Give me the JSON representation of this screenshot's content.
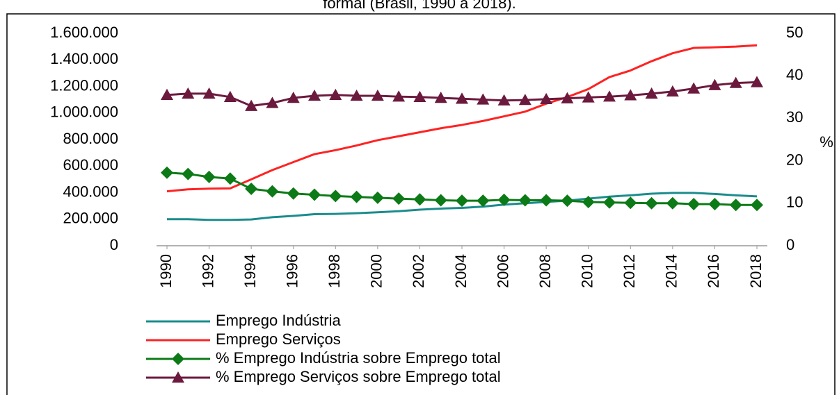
{
  "chart_data": {
    "type": "line",
    "title": "formal (Brasil, 1990 a 2018).",
    "y2label": "%",
    "x": [
      1990,
      1991,
      1992,
      1993,
      1994,
      1995,
      1996,
      1997,
      1998,
      1999,
      2000,
      2001,
      2002,
      2003,
      2004,
      2005,
      2006,
      2007,
      2008,
      2009,
      2010,
      2011,
      2012,
      2013,
      2014,
      2015,
      2016,
      2017,
      2018
    ],
    "xlim": [
      1990,
      2018
    ],
    "xticks": [
      1990,
      1992,
      1994,
      1996,
      1998,
      2000,
      2002,
      2004,
      2006,
      2008,
      2010,
      2012,
      2014,
      2016,
      2018
    ],
    "ylim": [
      0,
      1600000
    ],
    "yticks": [
      0,
      {
        "value": 200000,
        "label": "200.000"
      },
      {
        "value": 400000,
        "label": "400.000"
      },
      {
        "value": 600000,
        "label": "600.000"
      },
      {
        "value": 800000,
        "label": "800.000"
      },
      {
        "value": 1000000,
        "label": "1.000.000"
      },
      {
        "value": 1200000,
        "label": "1.200.000"
      },
      {
        "value": 1400000,
        "label": "1.400.000"
      },
      {
        "value": 1600000,
        "label": "1.600.000"
      }
    ],
    "y2lim": [
      0,
      50
    ],
    "y2ticks": [
      0,
      10,
      20,
      30,
      40,
      50
    ],
    "grid": false,
    "series": [
      {
        "name": "Emprego Indústria",
        "color": "#1b8c8c",
        "marker": "none",
        "values": [
          200000,
          200000,
          195000,
          195000,
          198000,
          215000,
          225000,
          238000,
          240000,
          245000,
          252000,
          260000,
          272000,
          280000,
          285000,
          295000,
          310000,
          320000,
          330000,
          340000,
          355000,
          370000,
          380000,
          392000,
          398000,
          398000,
          390000,
          380000,
          372000
        ]
      },
      {
        "name": "Emprego Serviços",
        "color": "#ff2222",
        "marker": "none",
        "values": [
          410000,
          425000,
          430000,
          432000,
          500000,
          570000,
          630000,
          690000,
          720000,
          755000,
          795000,
          825000,
          855000,
          885000,
          910000,
          940000,
          975000,
          1010000,
          1070000,
          1120000,
          1180000,
          1270000,
          1320000,
          1390000,
          1450000,
          1490000,
          1495000,
          1500000,
          1510000
        ]
      },
      {
        "name": "% Emprego Indústria sobre Emprego total",
        "color": "#0c7a16",
        "marker": "diamond",
        "axis": "y2",
        "values": [
          17.2,
          16.9,
          16.2,
          15.8,
          13.4,
          12.8,
          12.3,
          12.0,
          11.7,
          11.5,
          11.3,
          11.1,
          10.9,
          10.7,
          10.6,
          10.6,
          10.8,
          10.7,
          10.7,
          10.6,
          10.3,
          10.2,
          10.1,
          10.0,
          10.0,
          9.8,
          9.8,
          9.6,
          9.6
        ]
      },
      {
        "name": "% Emprego Serviços sobre Emprego total",
        "color": "#6b1a3e",
        "marker": "triangle",
        "axis": "y2",
        "values": [
          35.5,
          35.8,
          35.8,
          35.0,
          32.9,
          33.6,
          34.8,
          35.3,
          35.5,
          35.3,
          35.3,
          35.1,
          35.0,
          34.8,
          34.6,
          34.4,
          34.2,
          34.3,
          34.5,
          34.7,
          34.9,
          35.1,
          35.4,
          35.8,
          36.3,
          37.0,
          37.8,
          38.3,
          38.5
        ]
      }
    ]
  }
}
